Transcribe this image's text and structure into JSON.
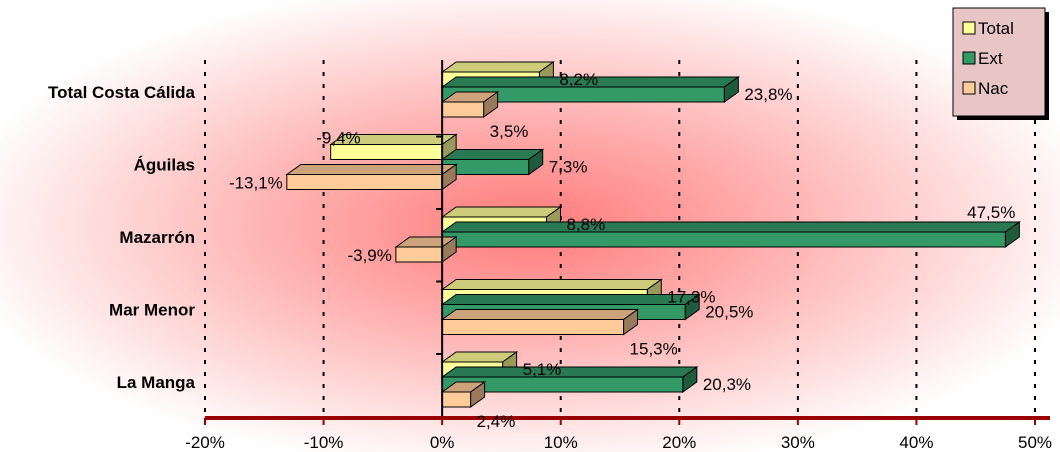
{
  "chart_data": {
    "type": "bar",
    "orientation": "horizontal",
    "style": "3d",
    "categories": [
      "Total Costa Cálida",
      "Águilas",
      "Mazarrón",
      "Mar Menor",
      "La Manga"
    ],
    "series": [
      {
        "name": "Total",
        "color": "#FFFF99",
        "values": [
          8.2,
          -9.4,
          8.8,
          17.3,
          5.1
        ],
        "labels": [
          "8,2%",
          "-9,4%",
          "8,8%",
          "17,3%",
          "5,1%"
        ]
      },
      {
        "name": "Ext",
        "color": "#339966",
        "values": [
          23.8,
          7.3,
          47.5,
          20.5,
          20.3
        ],
        "labels": [
          "23,8%",
          "7,3%",
          "47,5%",
          "20,5%",
          "20,3%"
        ]
      },
      {
        "name": "Nac",
        "color": "#FFCC99",
        "values": [
          3.5,
          -13.1,
          -3.9,
          15.3,
          2.4
        ],
        "labels": [
          "3,5%",
          "-13,1%",
          "-3,9%",
          "15,3%",
          "2,4%"
        ]
      }
    ],
    "xlim": [
      -20,
      50
    ],
    "xticks": [
      -20,
      -10,
      0,
      10,
      20,
      30,
      40,
      50
    ],
    "xtick_labels": [
      "-20%",
      "-10%",
      "0%",
      "10%",
      "20%",
      "30%",
      "40%",
      "50%"
    ],
    "grid": "vertical dotted",
    "legend_position": "top-right",
    "axis_color": "#990000",
    "background": "radial red glow"
  }
}
